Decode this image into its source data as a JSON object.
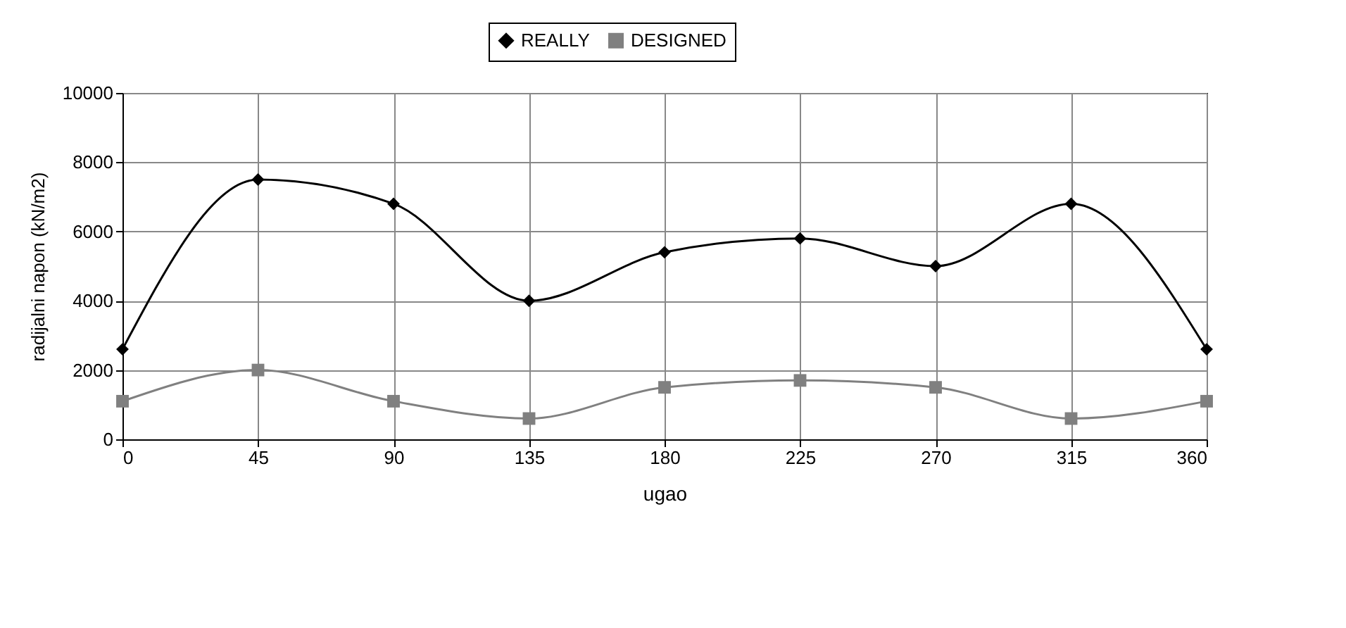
{
  "chart_data": {
    "type": "line",
    "xlabel": "ugao",
    "ylabel": "radijalni napon (kN/m2)",
    "x": [
      0,
      45,
      90,
      135,
      180,
      225,
      270,
      315,
      360
    ],
    "series": [
      {
        "name": "REALLY",
        "color": "#000000",
        "marker": "diamond",
        "values": [
          2600,
          7500,
          6800,
          4000,
          5400,
          5800,
          5000,
          6800,
          2600
        ]
      },
      {
        "name": "DESIGNED",
        "color": "#808080",
        "marker": "square",
        "values": [
          1100,
          2000,
          1100,
          600,
          1500,
          1700,
          1500,
          600,
          1100
        ]
      }
    ],
    "xlim": [
      0,
      360
    ],
    "xticks": [
      0,
      45,
      90,
      135,
      180,
      225,
      270,
      315,
      360
    ],
    "ylim": [
      0,
      10000
    ],
    "yticks": [
      0,
      2000,
      4000,
      6000,
      8000,
      10000
    ],
    "grid": true,
    "legend": "top",
    "line_style": "solid"
  }
}
